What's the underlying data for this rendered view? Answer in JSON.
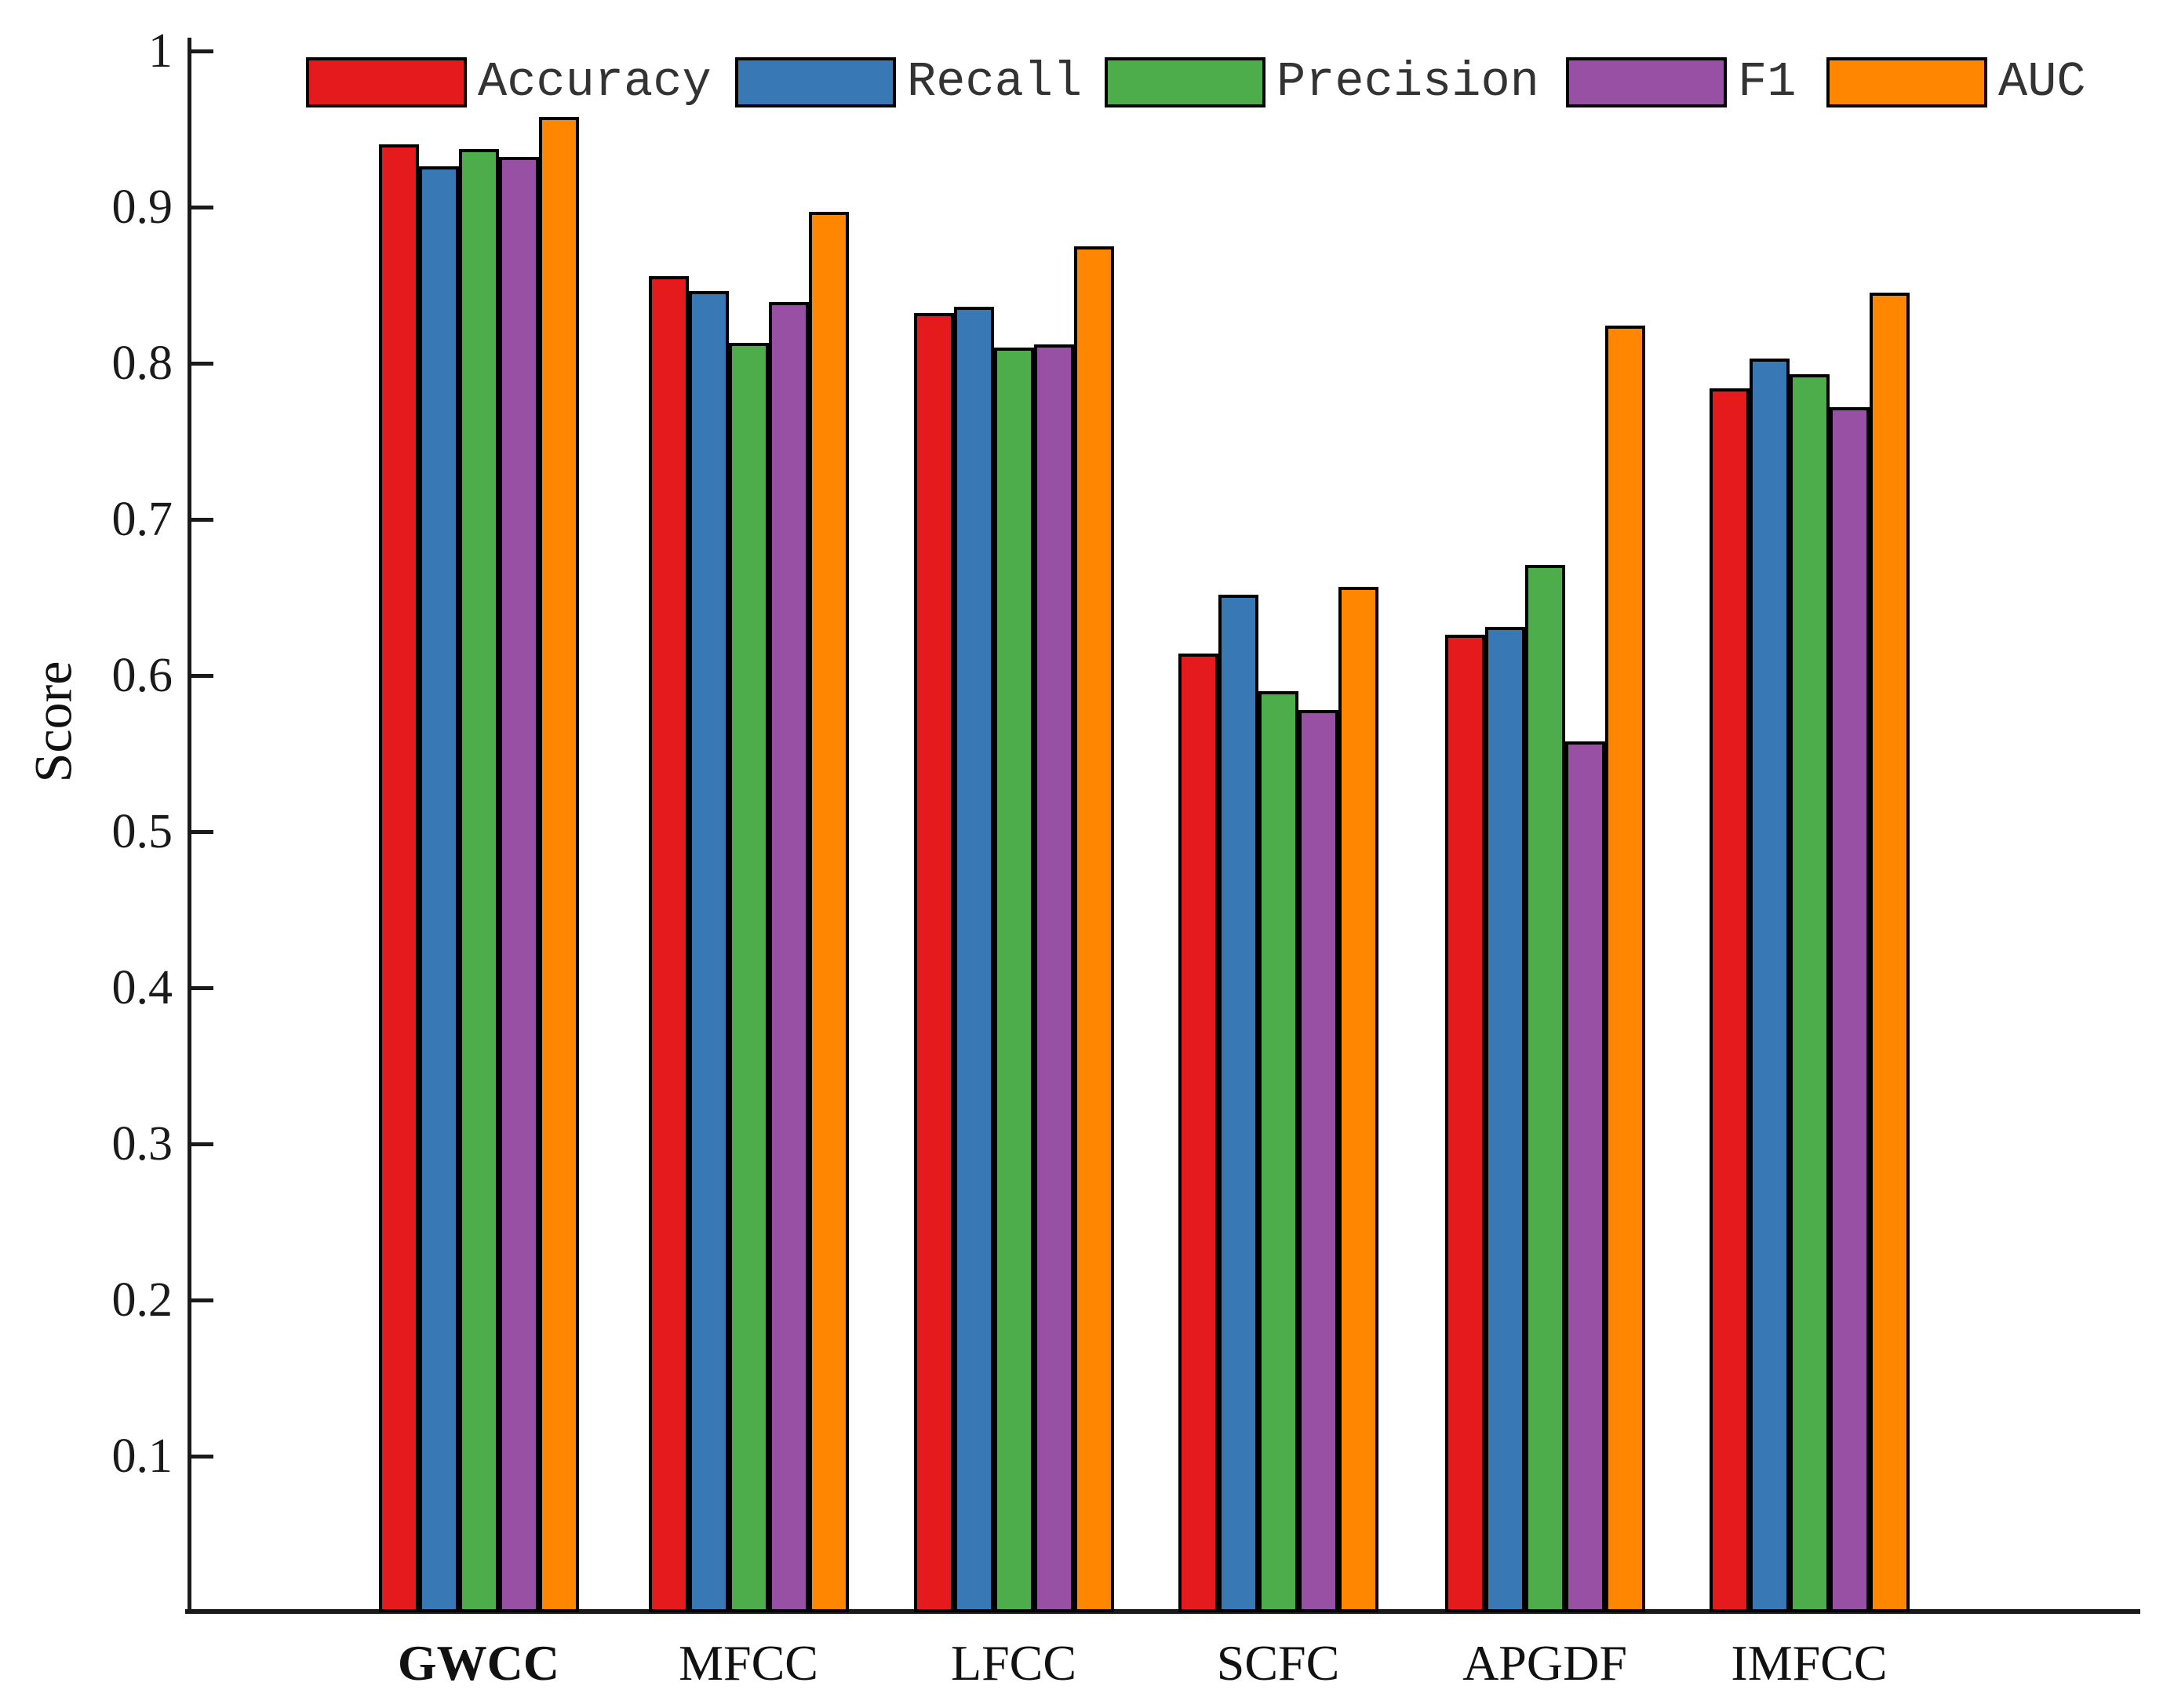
{
  "chart_data": {
    "type": "bar",
    "title": "",
    "xlabel": "",
    "ylabel": "Score",
    "ylim": [
      0,
      1
    ],
    "grid": false,
    "legend_position": "top-horizontal",
    "categories": [
      "GWCC",
      "MFCC",
      "LFCC",
      "SCFC",
      "APGDF",
      "IMFCC"
    ],
    "highlighted_category": "GWCC",
    "yticks": [
      0.1,
      0.2,
      0.3,
      0.4,
      0.5,
      0.6,
      0.7,
      0.8,
      0.9,
      1.0
    ],
    "ytick_labels": [
      "0.1",
      "0.2",
      "0.3",
      "0.4",
      "0.5",
      "0.6",
      "0.7",
      "0.8",
      "0.9",
      "1"
    ],
    "series": [
      {
        "name": "Accuracy",
        "color": "#e41a1c",
        "values": [
          0.94,
          0.856,
          0.832,
          0.614,
          0.626,
          0.784
        ]
      },
      {
        "name": "Recall",
        "color": "#3879b5",
        "values": [
          0.926,
          0.846,
          0.836,
          0.652,
          0.631,
          0.803
        ]
      },
      {
        "name": "Precision",
        "color": "#4dad4a",
        "values": [
          0.937,
          0.813,
          0.81,
          0.59,
          0.671,
          0.793
        ]
      },
      {
        "name": "F1",
        "color": "#9750a4",
        "values": [
          0.932,
          0.839,
          0.812,
          0.578,
          0.558,
          0.772
        ]
      },
      {
        "name": "AUC",
        "color": "#ff8600",
        "values": [
          0.958,
          0.897,
          0.875,
          0.657,
          0.824,
          0.845
        ]
      }
    ]
  }
}
